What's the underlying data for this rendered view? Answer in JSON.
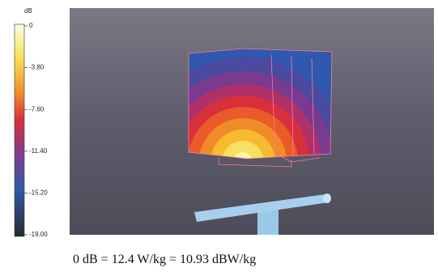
{
  "colorbar": {
    "unit": "dB",
    "ticks": [
      "0",
      "-3.80",
      "-7.60",
      "-11.40",
      "-15.20",
      "-19.00"
    ]
  },
  "caption": "0 dB = 12.4 W/kg = 10.93 dBW/kg"
}
